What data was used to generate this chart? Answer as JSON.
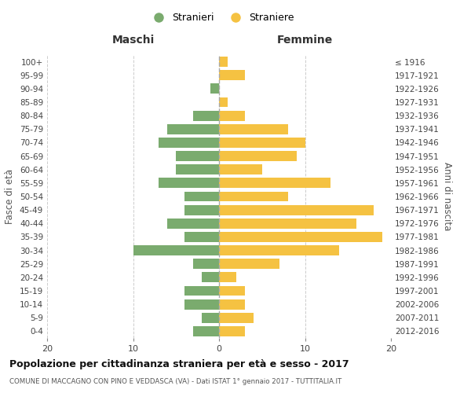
{
  "age_groups": [
    "100+",
    "95-99",
    "90-94",
    "85-89",
    "80-84",
    "75-79",
    "70-74",
    "65-69",
    "60-64",
    "55-59",
    "50-54",
    "45-49",
    "40-44",
    "35-39",
    "30-34",
    "25-29",
    "20-24",
    "15-19",
    "10-14",
    "5-9",
    "0-4"
  ],
  "birth_years": [
    "≤ 1916",
    "1917-1921",
    "1922-1926",
    "1927-1931",
    "1932-1936",
    "1937-1941",
    "1942-1946",
    "1947-1951",
    "1952-1956",
    "1957-1961",
    "1962-1966",
    "1967-1971",
    "1972-1976",
    "1977-1981",
    "1982-1986",
    "1987-1991",
    "1992-1996",
    "1997-2001",
    "2002-2006",
    "2007-2011",
    "2012-2016"
  ],
  "maschi": [
    0,
    0,
    1,
    0,
    3,
    6,
    7,
    5,
    5,
    7,
    4,
    4,
    6,
    4,
    10,
    3,
    2,
    4,
    4,
    2,
    3
  ],
  "femmine": [
    1,
    3,
    0,
    1,
    3,
    8,
    10,
    9,
    5,
    13,
    8,
    18,
    16,
    19,
    14,
    7,
    2,
    3,
    3,
    4,
    3
  ],
  "maschi_color": "#7aab6e",
  "femmine_color": "#f5c242",
  "background_color": "#ffffff",
  "grid_color": "#cccccc",
  "title": "Popolazione per cittadinanza straniera per età e sesso - 2017",
  "subtitle": "COMUNE DI MACCAGNO CON PINO E VEDDASCA (VA) - Dati ISTAT 1° gennaio 2017 - TUTTITALIA.IT",
  "xlabel_left": "Maschi",
  "xlabel_right": "Femmine",
  "ylabel_left": "Fasce di età",
  "ylabel_right": "Anni di nascita",
  "xlim": 20,
  "legend_labels": [
    "Stranieri",
    "Straniere"
  ]
}
